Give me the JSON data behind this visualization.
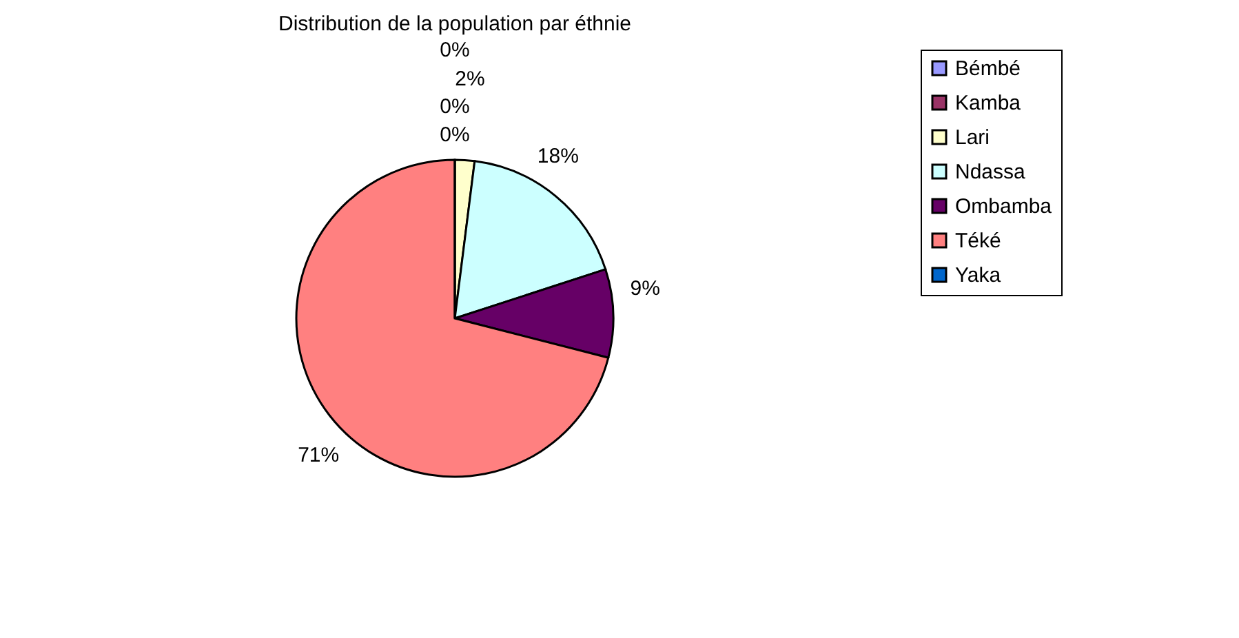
{
  "chart_data": {
    "type": "pie",
    "title": "Distribution de la population par éthnie",
    "categories": [
      "Bémbé",
      "Kamba",
      "Lari",
      "Ndassa",
      "Ombamba",
      "Téké",
      "Yaka"
    ],
    "values": [
      0,
      0,
      2,
      18,
      9,
      71,
      0
    ],
    "colors": [
      "#9999ff",
      "#993366",
      "#ffffcc",
      "#ccffff",
      "#660066",
      "#ff8080",
      "#0066cc"
    ],
    "value_labels": [
      "0%",
      "0%",
      "2%",
      "18%",
      "9%",
      "71%",
      "0%"
    ],
    "legend": "right"
  }
}
